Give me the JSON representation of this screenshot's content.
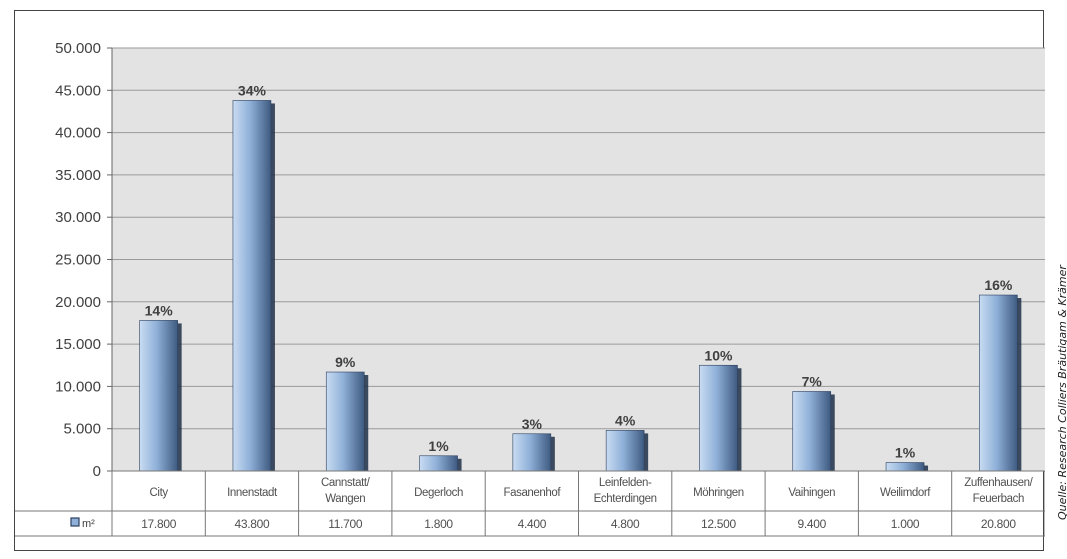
{
  "chart_data": {
    "type": "bar",
    "categories": [
      [
        "City"
      ],
      [
        "Innenstadt"
      ],
      [
        "Cannstatt/",
        "Wangen"
      ],
      [
        "Degerloch"
      ],
      [
        "Fasanenhof"
      ],
      [
        "Leinfelden-",
        "Echterdingen"
      ],
      [
        "Möhringen"
      ],
      [
        "Vaihingen"
      ],
      [
        "Weilimdorf"
      ],
      [
        "Zuffenhausen/",
        "Feuerbach"
      ]
    ],
    "series": [
      {
        "name": "m²",
        "values": [
          17800,
          43800,
          11700,
          1800,
          4400,
          4800,
          12500,
          9400,
          1000,
          20800
        ],
        "value_labels": [
          "17.800",
          "43.800",
          "11.700",
          "1.800",
          "4.400",
          "4.800",
          "12.500",
          "9.400",
          "1.000",
          "20.800"
        ],
        "percent_labels": [
          "14%",
          "34%",
          "9%",
          "1%",
          "3%",
          "4%",
          "10%",
          "7%",
          "1%",
          "16%"
        ]
      }
    ],
    "ylim": [
      0,
      50000
    ],
    "yticks": [
      0,
      5000,
      10000,
      15000,
      20000,
      25000,
      30000,
      35000,
      40000,
      45000,
      50000
    ],
    "ytick_labels": [
      "0",
      "5.000",
      "10.000",
      "15.000",
      "20.000",
      "25.000",
      "30.000",
      "35.000",
      "40.000",
      "45.000",
      "50.000"
    ],
    "grid": true,
    "data_table": true,
    "colors": {
      "bar_light": "#c9dcf2",
      "bar_mid": "#8fb0d8",
      "bar_dark": "#3e5a80",
      "plot_background": "#e3e3e3",
      "gridline": "#9a9a9a"
    }
  },
  "source_note": "Quelle: Research Colliers Bräutigam & Krämer"
}
